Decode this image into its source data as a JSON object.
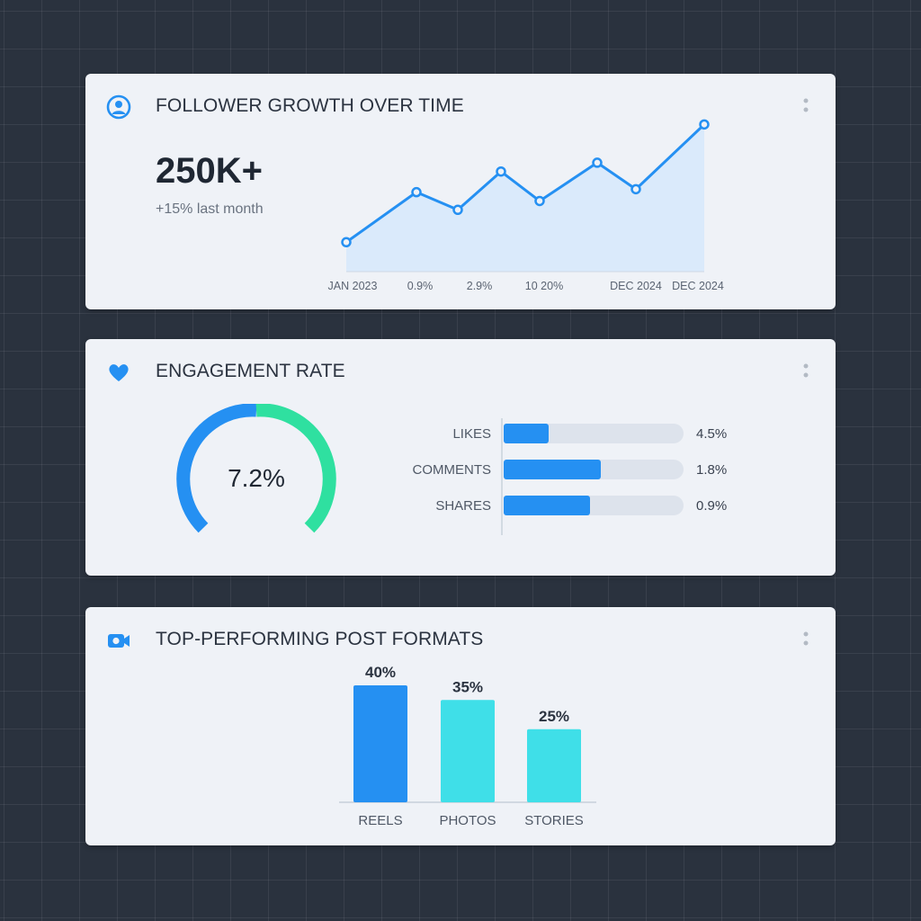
{
  "colors": {
    "background": "#2a323e",
    "card": "#eff2f7",
    "accent_blue": "#2590f2",
    "accent_teal": "#3fdfe8",
    "accent_green": "#2fe0a0",
    "track": "#dde3ec"
  },
  "follower_card": {
    "title": "FOLLOWER GROWTH OVER TIME",
    "icon": "user-circle-icon",
    "more_icon": "more-vertical-icon",
    "headline": "250K+",
    "subline": "+15% last month",
    "chart_data": {
      "type": "area",
      "title": "",
      "x_tick_labels": [
        "JAN 2023",
        "0.9%",
        "2.9%",
        "10 20%",
        "DEC 2024",
        "DEC 2024"
      ],
      "values": [
        1.0,
        2.7,
        2.1,
        3.4,
        2.4,
        3.7,
        2.8,
        5.0
      ],
      "ylim": [
        0,
        5.5
      ],
      "grid": false,
      "legend": "none"
    }
  },
  "engagement_card": {
    "title": "ENGAGEMENT RATE",
    "icon": "heart-icon",
    "more_icon": "more-vertical-icon",
    "gauge": {
      "label": "7.2%",
      "value_fraction": 0.5
    },
    "chart_data": {
      "type": "bar",
      "orientation": "horizontal",
      "categories": [
        "LIKES",
        "COMMENTS",
        "SHARES"
      ],
      "value_labels": [
        "4.5%",
        "1.8%",
        "0.9%"
      ],
      "fill_fractions": [
        0.25,
        0.54,
        0.48
      ],
      "grid": false,
      "legend": "none"
    }
  },
  "formats_card": {
    "title": "TOP-PERFORMING POST FORMATS",
    "icon": "video-camera-icon",
    "more_icon": "more-vertical-icon",
    "chart_data": {
      "type": "bar",
      "categories": [
        "REELS",
        "PHOTOS",
        "STORIES"
      ],
      "values": [
        40,
        35,
        25
      ],
      "value_labels": [
        "40%",
        "35%",
        "25%"
      ],
      "ylim": [
        0,
        40
      ],
      "colors": [
        "#2590f2",
        "#3fdfe8",
        "#3fdfe8"
      ],
      "grid": false,
      "legend": "none"
    }
  }
}
